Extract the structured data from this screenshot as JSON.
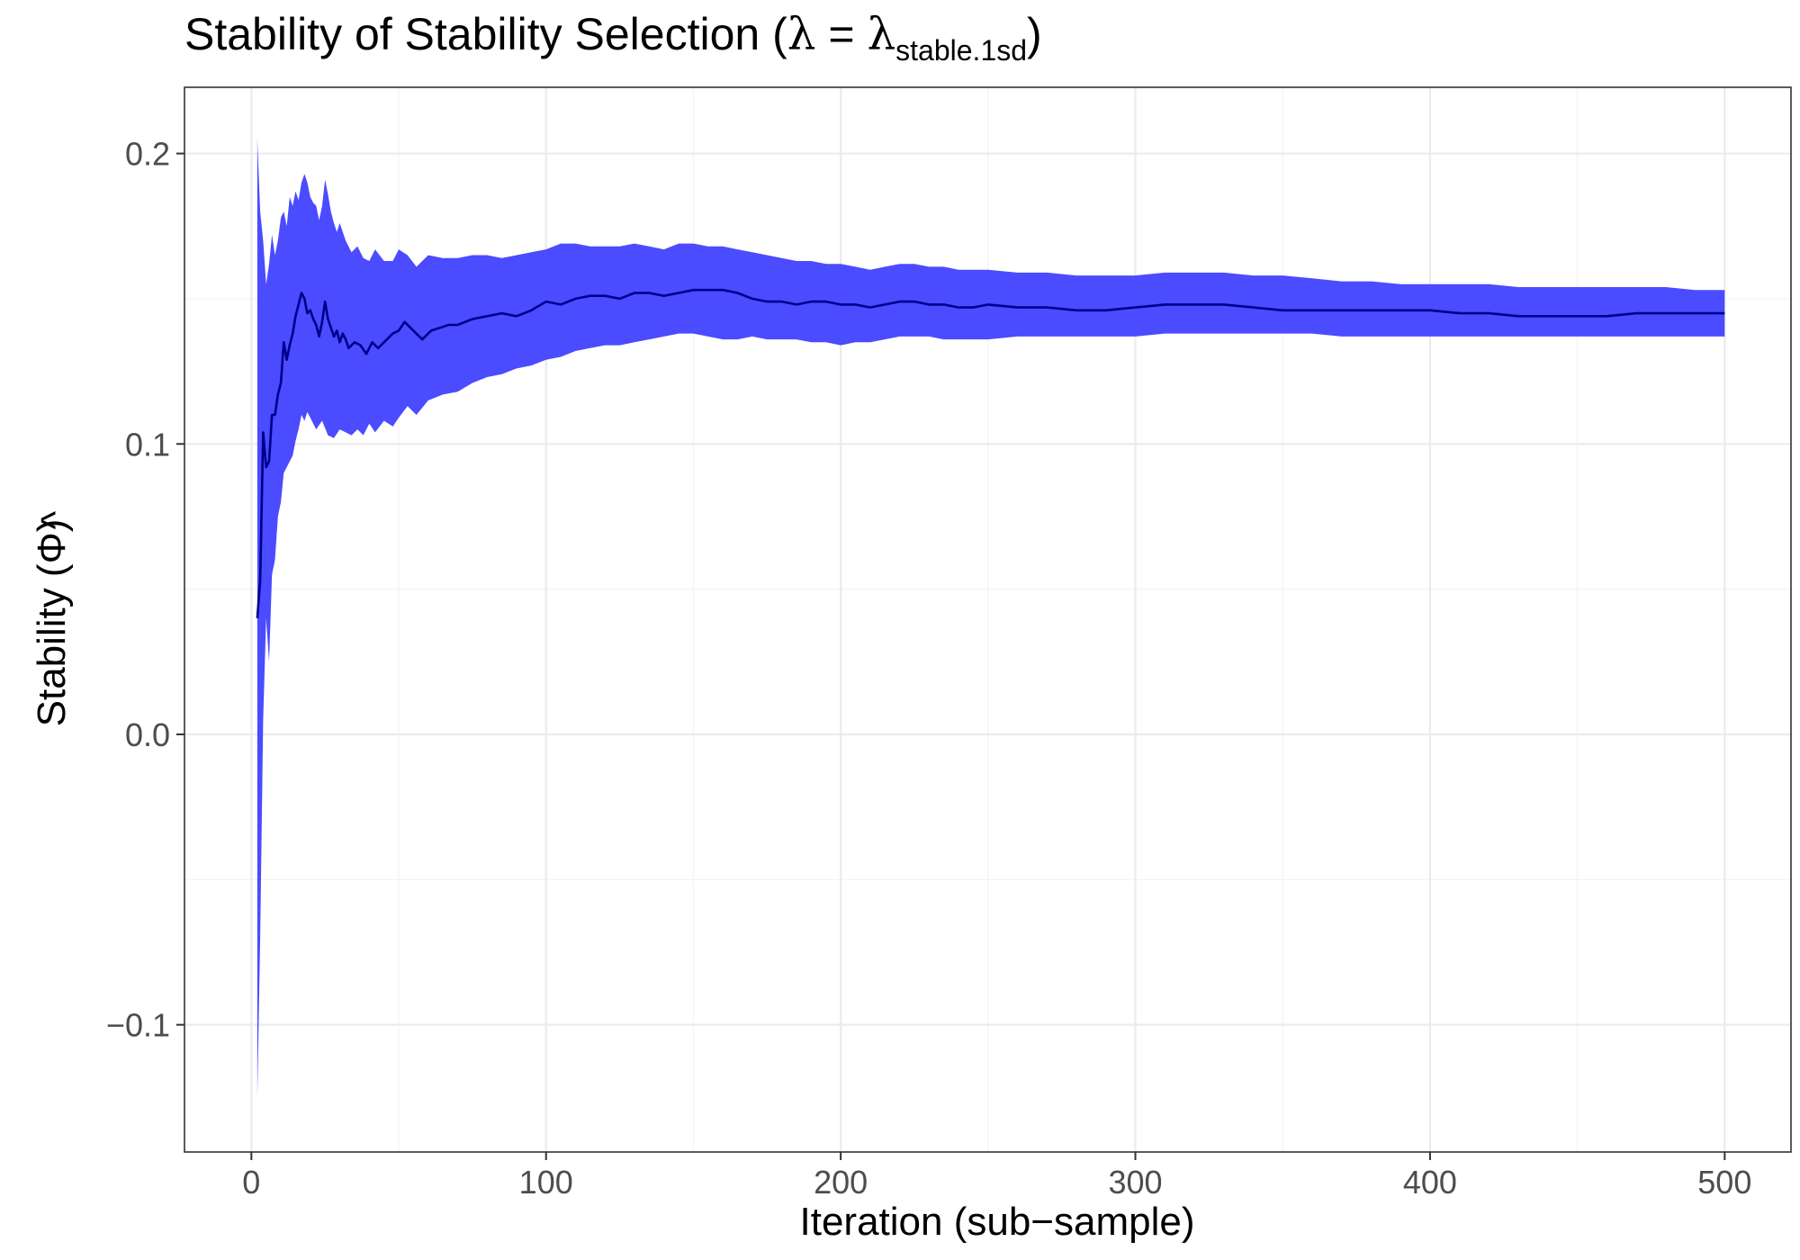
{
  "chart_data": {
    "type": "area",
    "title": {
      "main": "Stability of Stability Selection (",
      "lambda": "λ",
      "equals": " = ",
      "lambda2": "λ",
      "subscript": "stable.1sd",
      "close": ")"
    },
    "xlabel": "Iteration (sub−sample)",
    "ylabel": {
      "text": "Stability (",
      "symbol": "Φ",
      "hat": "^",
      "close": ")"
    },
    "xlim": [
      -22.7,
      522.5
    ],
    "ylim": [
      -0.1438,
      0.2228
    ],
    "x_ticks": [
      0,
      100,
      200,
      300,
      400,
      500
    ],
    "x_tick_labels": [
      "0",
      "100",
      "200",
      "300",
      "400",
      "500"
    ],
    "x_minor_ticks": [
      50,
      150,
      250,
      350,
      450
    ],
    "y_ticks": [
      -0.1,
      0.0,
      0.1,
      0.2
    ],
    "y_tick_labels": [
      "−0.1",
      "0.0",
      "0.1",
      "0.2"
    ],
    "y_minor_ticks": [
      -0.05,
      0.05,
      0.15
    ],
    "grid": true,
    "colors": {
      "band_fill": "#4b4bff",
      "line": "#00008b",
      "background": "#ffffff",
      "panel_border": "#333333"
    },
    "series": [
      {
        "kind": "mean_line",
        "x": [
          2,
          3,
          4,
          5,
          6,
          7,
          8,
          9,
          10,
          11,
          12,
          13,
          14,
          15,
          16,
          17,
          18,
          19,
          20,
          21,
          22,
          23,
          24,
          25,
          26,
          27,
          28,
          29,
          30,
          31,
          32,
          33,
          35,
          37,
          39,
          41,
          43,
          45,
          48,
          50,
          52,
          55,
          58,
          61,
          64,
          67,
          70,
          75,
          80,
          85,
          90,
          95,
          100,
          105,
          110,
          115,
          120,
          125,
          130,
          135,
          140,
          145,
          150,
          155,
          160,
          165,
          170,
          175,
          180,
          185,
          190,
          195,
          200,
          205,
          210,
          215,
          220,
          225,
          230,
          235,
          240,
          245,
          250,
          260,
          270,
          280,
          290,
          300,
          310,
          320,
          330,
          340,
          350,
          360,
          370,
          380,
          390,
          400,
          410,
          420,
          430,
          440,
          450,
          460,
          470,
          480,
          490,
          500
        ],
        "y": [
          0.04,
          0.053,
          0.104,
          0.092,
          0.094,
          0.11,
          0.11,
          0.117,
          0.121,
          0.135,
          0.129,
          0.134,
          0.138,
          0.144,
          0.148,
          0.152,
          0.15,
          0.145,
          0.146,
          0.143,
          0.141,
          0.137,
          0.142,
          0.149,
          0.143,
          0.14,
          0.137,
          0.139,
          0.135,
          0.138,
          0.136,
          0.133,
          0.135,
          0.134,
          0.131,
          0.135,
          0.133,
          0.135,
          0.138,
          0.139,
          0.142,
          0.139,
          0.136,
          0.139,
          0.14,
          0.141,
          0.141,
          0.143,
          0.144,
          0.145,
          0.144,
          0.146,
          0.149,
          0.148,
          0.15,
          0.151,
          0.151,
          0.15,
          0.152,
          0.152,
          0.151,
          0.152,
          0.153,
          0.153,
          0.153,
          0.152,
          0.15,
          0.149,
          0.149,
          0.148,
          0.149,
          0.149,
          0.148,
          0.148,
          0.147,
          0.148,
          0.149,
          0.149,
          0.148,
          0.148,
          0.147,
          0.147,
          0.148,
          0.147,
          0.147,
          0.146,
          0.146,
          0.147,
          0.148,
          0.148,
          0.148,
          0.147,
          0.146,
          0.146,
          0.146,
          0.146,
          0.146,
          0.146,
          0.145,
          0.145,
          0.144,
          0.144,
          0.144,
          0.144,
          0.145,
          0.145,
          0.145,
          0.145
        ]
      },
      {
        "kind": "upper_bound",
        "x": [
          2,
          3,
          4,
          5,
          6,
          7,
          8,
          9,
          10,
          11,
          12,
          13,
          14,
          15,
          16,
          17,
          18,
          19,
          20,
          21,
          22,
          23,
          24,
          25,
          26,
          27,
          28,
          29,
          30,
          32,
          34,
          36,
          38,
          40,
          42,
          45,
          48,
          50,
          53,
          56,
          60,
          65,
          70,
          75,
          80,
          85,
          90,
          95,
          100,
          105,
          110,
          115,
          120,
          125,
          130,
          135,
          140,
          145,
          150,
          155,
          160,
          165,
          170,
          175,
          180,
          185,
          190,
          195,
          200,
          205,
          210,
          215,
          220,
          225,
          230,
          235,
          240,
          245,
          250,
          260,
          270,
          280,
          290,
          300,
          310,
          320,
          330,
          340,
          350,
          360,
          370,
          380,
          390,
          400,
          410,
          420,
          430,
          440,
          450,
          460,
          470,
          480,
          490,
          500
        ],
        "y": [
          0.205,
          0.18,
          0.17,
          0.155,
          0.162,
          0.172,
          0.165,
          0.17,
          0.178,
          0.18,
          0.175,
          0.185,
          0.182,
          0.187,
          0.184,
          0.19,
          0.193,
          0.19,
          0.185,
          0.183,
          0.182,
          0.177,
          0.182,
          0.191,
          0.186,
          0.18,
          0.176,
          0.173,
          0.176,
          0.17,
          0.166,
          0.168,
          0.164,
          0.163,
          0.167,
          0.163,
          0.163,
          0.167,
          0.165,
          0.161,
          0.165,
          0.164,
          0.164,
          0.165,
          0.165,
          0.164,
          0.165,
          0.166,
          0.167,
          0.169,
          0.169,
          0.168,
          0.168,
          0.168,
          0.169,
          0.168,
          0.167,
          0.169,
          0.169,
          0.168,
          0.168,
          0.167,
          0.166,
          0.165,
          0.164,
          0.163,
          0.163,
          0.162,
          0.162,
          0.161,
          0.16,
          0.161,
          0.162,
          0.162,
          0.161,
          0.161,
          0.16,
          0.16,
          0.16,
          0.159,
          0.159,
          0.158,
          0.158,
          0.158,
          0.159,
          0.159,
          0.159,
          0.158,
          0.158,
          0.157,
          0.156,
          0.156,
          0.155,
          0.155,
          0.155,
          0.155,
          0.154,
          0.154,
          0.154,
          0.154,
          0.154,
          0.154,
          0.153,
          0.153
        ]
      },
      {
        "kind": "lower_bound",
        "x": [
          2,
          3,
          4,
          5,
          6,
          7,
          8,
          9,
          10,
          11,
          12,
          13,
          14,
          15,
          16,
          17,
          18,
          19,
          20,
          22,
          24,
          26,
          28,
          30,
          32,
          34,
          36,
          38,
          40,
          42,
          45,
          48,
          50,
          53,
          56,
          60,
          65,
          70,
          75,
          80,
          85,
          90,
          95,
          100,
          105,
          110,
          115,
          120,
          125,
          130,
          135,
          140,
          145,
          150,
          155,
          160,
          165,
          170,
          175,
          180,
          185,
          190,
          195,
          200,
          205,
          210,
          215,
          220,
          225,
          230,
          235,
          240,
          245,
          250,
          260,
          270,
          280,
          290,
          300,
          310,
          320,
          330,
          340,
          350,
          360,
          370,
          380,
          390,
          400,
          410,
          420,
          430,
          440,
          450,
          460,
          470,
          480,
          490,
          500
        ],
        "y": [
          -0.125,
          -0.07,
          0.005,
          0.04,
          0.025,
          0.055,
          0.06,
          0.075,
          0.08,
          0.09,
          0.092,
          0.094,
          0.096,
          0.101,
          0.105,
          0.11,
          0.108,
          0.111,
          0.109,
          0.105,
          0.108,
          0.103,
          0.102,
          0.105,
          0.104,
          0.103,
          0.105,
          0.103,
          0.107,
          0.104,
          0.108,
          0.106,
          0.109,
          0.113,
          0.11,
          0.115,
          0.117,
          0.118,
          0.121,
          0.123,
          0.124,
          0.126,
          0.127,
          0.129,
          0.13,
          0.132,
          0.133,
          0.134,
          0.134,
          0.135,
          0.136,
          0.137,
          0.138,
          0.138,
          0.137,
          0.136,
          0.136,
          0.137,
          0.136,
          0.136,
          0.136,
          0.135,
          0.135,
          0.134,
          0.135,
          0.135,
          0.136,
          0.137,
          0.137,
          0.137,
          0.136,
          0.136,
          0.136,
          0.136,
          0.137,
          0.137,
          0.137,
          0.137,
          0.137,
          0.138,
          0.138,
          0.138,
          0.138,
          0.138,
          0.138,
          0.137,
          0.137,
          0.137,
          0.137,
          0.137,
          0.137,
          0.137,
          0.137,
          0.137,
          0.137,
          0.137,
          0.137,
          0.137,
          0.137
        ]
      }
    ]
  }
}
